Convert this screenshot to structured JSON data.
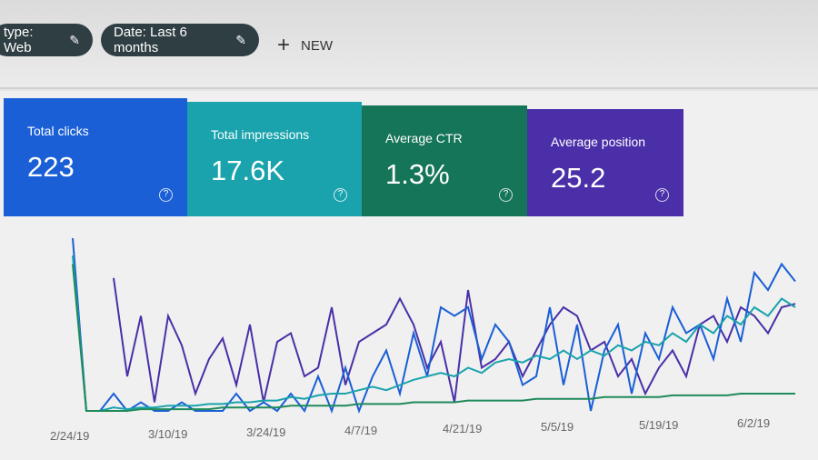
{
  "filters": {
    "chips": [
      {
        "label": "type: Web",
        "icon": "pencil-icon"
      },
      {
        "label": "Date: Last 6 months",
        "icon": "pencil-icon"
      }
    ],
    "new_label": "NEW",
    "new_icon": "plus-icon"
  },
  "metrics": [
    {
      "label": "Total clicks",
      "value": "223",
      "color": "#1a5fd6"
    },
    {
      "label": "Total impressions",
      "value": "17.6K",
      "color": "#1aa3ad"
    },
    {
      "label": "Average CTR",
      "value": "1.3%",
      "color": "#157559"
    },
    {
      "label": "Average position",
      "value": "25.2",
      "color": "#4a2fa8"
    }
  ],
  "chart_data": {
    "type": "line",
    "x_ticks": [
      "2/24/19",
      "3/10/19",
      "3/24/19",
      "4/7/19",
      "4/21/19",
      "5/5/19",
      "5/19/19",
      "6/2/19"
    ],
    "grid": false,
    "series": [
      {
        "color": "#4a2fa8",
        "start_step": 3,
        "values": [
          77,
          20,
          55,
          5,
          55,
          38,
          10,
          30,
          42,
          15,
          50,
          5,
          40,
          45,
          20,
          25,
          60,
          15,
          40,
          45,
          50,
          65,
          50,
          25,
          40,
          5,
          70,
          25,
          30,
          40,
          20,
          35,
          50,
          60,
          55,
          35,
          40,
          20,
          30,
          10,
          25,
          35,
          20,
          50,
          55,
          40,
          60,
          55,
          45,
          60,
          62
        ]
      },
      {
        "color": "#1a5fd6",
        "start_step": 0,
        "values": [
          100,
          0,
          0,
          10,
          0,
          5,
          0,
          0,
          5,
          0,
          0,
          0,
          10,
          0,
          5,
          0,
          10,
          0,
          20,
          0,
          25,
          0,
          20,
          35,
          10,
          45,
          20,
          60,
          55,
          60,
          30,
          50,
          40,
          15,
          20,
          60,
          15,
          50,
          0,
          35,
          50,
          10,
          45,
          30,
          60,
          45,
          50,
          30,
          65,
          40,
          80,
          70,
          85,
          75
        ]
      },
      {
        "color": "#1aa3ad",
        "start_step": 0,
        "values": [
          90,
          0,
          0,
          2,
          1,
          2,
          2,
          3,
          3,
          3,
          4,
          4,
          5,
          5,
          6,
          6,
          8,
          7,
          9,
          10,
          10,
          12,
          14,
          12,
          15,
          18,
          20,
          22,
          20,
          25,
          22,
          28,
          30,
          28,
          32,
          30,
          35,
          30,
          35,
          32,
          38,
          35,
          40,
          38,
          45,
          40,
          50,
          45,
          55,
          50,
          60,
          55,
          65,
          60
        ]
      },
      {
        "color": "#1f8a5a",
        "start_step": 0,
        "values": [
          85,
          0,
          0,
          0,
          0,
          1,
          1,
          1,
          1,
          1,
          1,
          2,
          2,
          2,
          2,
          2,
          3,
          3,
          3,
          3,
          3,
          4,
          4,
          4,
          4,
          5,
          5,
          5,
          5,
          6,
          6,
          6,
          6,
          6,
          7,
          7,
          7,
          7,
          7,
          8,
          8,
          8,
          8,
          8,
          9,
          9,
          9,
          9,
          9,
          10,
          10,
          10,
          10,
          10
        ]
      }
    ]
  }
}
